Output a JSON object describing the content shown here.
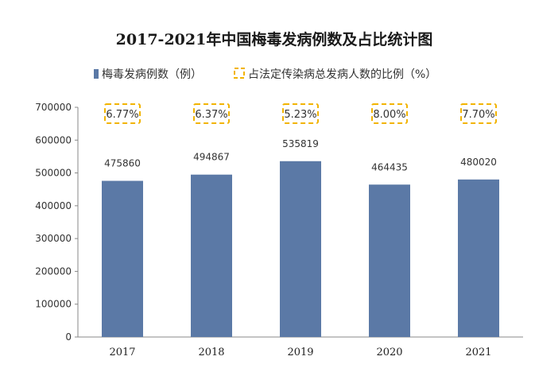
{
  "chart_data": {
    "type": "bar",
    "title": "2017-2021年中国梅毒发病例数及占比统计图",
    "categories": [
      "2017",
      "2018",
      "2019",
      "2020",
      "2021"
    ],
    "series": [
      {
        "name": "梅毒发病例数（例）",
        "values": [
          475860,
          494867,
          535819,
          464435,
          480020
        ],
        "color": "#5b79a6"
      },
      {
        "name": "占法定传染病总发病人数的比例（%）",
        "values": [
          "6.77%",
          "6.37%",
          "5.23%",
          "8.00%",
          "7.70%"
        ],
        "color": "#f2b400"
      }
    ],
    "ylim": [
      0,
      700000
    ],
    "yticks": [
      "0",
      "100000",
      "200000",
      "300000",
      "400000",
      "500000",
      "600000",
      "700000"
    ],
    "grid": false,
    "legend_position": "top"
  }
}
